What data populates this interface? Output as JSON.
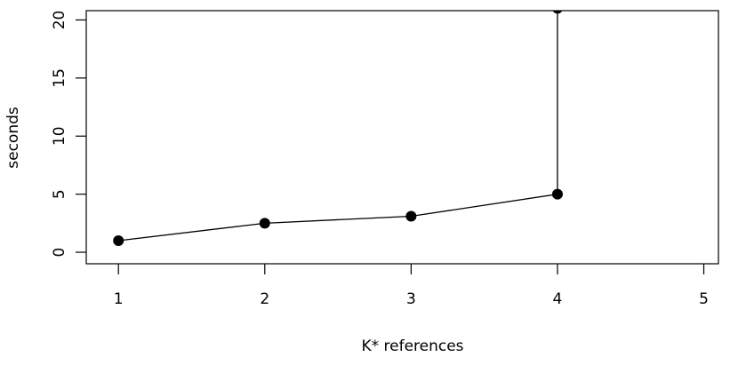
{
  "chart_data": {
    "type": "line",
    "x_label": "K* references",
    "y_label": "seconds",
    "x": [
      1,
      2,
      3,
      4,
      4
    ],
    "series": [
      {
        "color": "#000000",
        "values": [
          1.0,
          2.5,
          3.1,
          5.0,
          21
        ]
      }
    ],
    "xlim": [
      0.78,
      5.1
    ],
    "xticks": [
      1,
      2,
      3,
      4,
      5
    ],
    "ylim": [
      -0.99,
      20.8
    ],
    "yticks": [
      0,
      5,
      10,
      15,
      20
    ],
    "markers": true
  }
}
